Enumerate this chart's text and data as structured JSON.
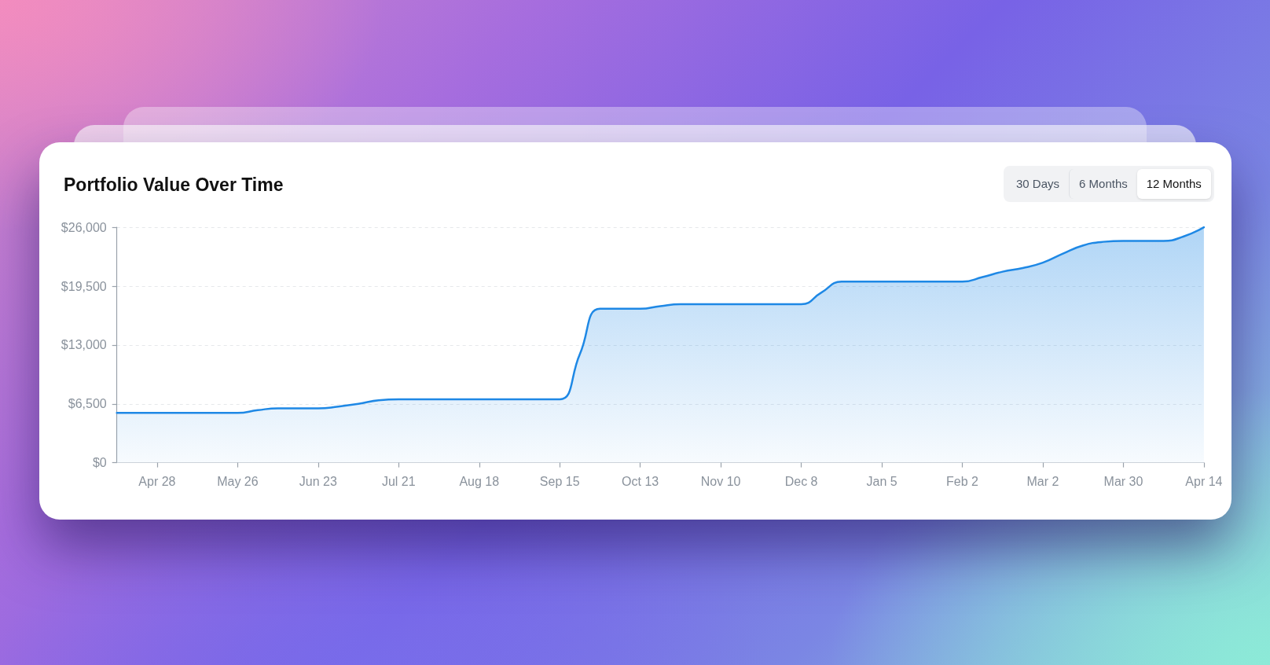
{
  "chart_data": {
    "type": "area",
    "title": "Portfolio Value Over Time",
    "annotations": [
      "30 Days",
      "6 Months",
      "12 Months"
    ],
    "categories": [
      null,
      null,
      "Apr 28",
      null,
      null,
      null,
      "May 26",
      null,
      null,
      null,
      "Jun 23",
      null,
      null,
      null,
      "Jul 21",
      null,
      null,
      null,
      "Aug 18",
      null,
      null,
      null,
      "Sep 15",
      null,
      null,
      null,
      "Oct 13",
      null,
      null,
      null,
      "Nov 10",
      null,
      null,
      null,
      "Dec 8",
      null,
      null,
      null,
      "Jan 5",
      null,
      null,
      null,
      "Feb 2",
      null,
      null,
      null,
      "Mar 2",
      null,
      null,
      null,
      "Mar 30",
      null,
      null,
      null,
      "Apr 14"
    ],
    "values": [
      5500,
      5500,
      5500,
      5500,
      5500,
      5500,
      5500,
      5800,
      6000,
      6000,
      6000,
      6200,
      6500,
      6900,
      7000,
      7000,
      7000,
      7000,
      7000,
      7000,
      7000,
      7000,
      7000,
      12000,
      17000,
      17000,
      17000,
      17300,
      17500,
      17500,
      17500,
      17500,
      17500,
      17500,
      17500,
      18800,
      20000,
      20000,
      20000,
      20000,
      20000,
      20000,
      20000,
      20500,
      21100,
      21500,
      22100,
      23100,
      24000,
      24400,
      24500,
      24500,
      24500,
      25000,
      26000
    ],
    "color": "#1e88e5",
    "ylim": [
      0,
      26000
    ],
    "yticks": [
      {
        "value": 0,
        "label": "$0"
      },
      {
        "value": 6500,
        "label": "$6,500"
      },
      {
        "value": 13000,
        "label": "$13,000"
      },
      {
        "value": 19500,
        "label": "$19,500"
      },
      {
        "value": 26000,
        "label": "$26,000"
      }
    ],
    "grid": "y"
  }
}
